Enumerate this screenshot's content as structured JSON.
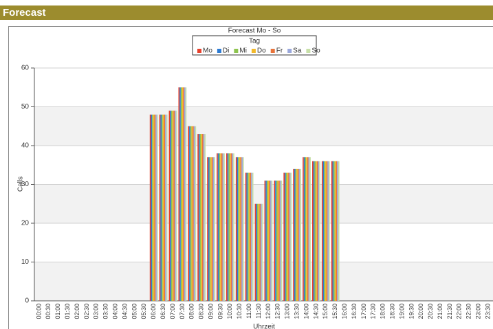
{
  "header": {
    "title": "Forecast"
  },
  "chart_data": {
    "type": "bar",
    "title": "Forecast Mo - So",
    "legend_title": "Tag",
    "x_label": "Uhrzeit",
    "y_label": "Calls",
    "categories": [
      "00:00",
      "00:30",
      "01:00",
      "01:30",
      "02:00",
      "02:30",
      "03:00",
      "03:30",
      "04:00",
      "04:30",
      "05:00",
      "05:30",
      "06:00",
      "06:30",
      "07:00",
      "07:30",
      "08:00",
      "08:30",
      "09:00",
      "09:30",
      "10:00",
      "10:30",
      "11:00",
      "11:30",
      "12:00",
      "12:30",
      "13:00",
      "13:30",
      "14:00",
      "14:30",
      "15:00",
      "15:30",
      "16:00",
      "16:30",
      "17:00",
      "17:30",
      "18:00",
      "18:30",
      "19:00",
      "19:30",
      "20:00",
      "20:30",
      "21:00",
      "21:30",
      "22:00",
      "22:30",
      "23:00",
      "23:30"
    ],
    "series": [
      {
        "name": "Mo",
        "color": "#e8412c",
        "values": [
          0,
          0,
          0,
          0,
          0,
          0,
          0,
          0,
          0,
          0,
          0,
          0,
          48,
          48,
          49,
          55,
          45,
          43,
          37,
          38,
          38,
          37,
          33,
          25,
          31,
          31,
          33,
          34,
          37,
          36,
          36,
          36,
          0,
          0,
          0,
          0,
          0,
          0,
          0,
          0,
          0,
          0,
          0,
          0,
          0,
          0,
          0,
          0
        ]
      },
      {
        "name": "Di",
        "color": "#2c7bd3",
        "values": [
          0,
          0,
          0,
          0,
          0,
          0,
          0,
          0,
          0,
          0,
          0,
          0,
          48,
          48,
          49,
          55,
          45,
          43,
          37,
          38,
          38,
          37,
          33,
          25,
          31,
          31,
          33,
          34,
          37,
          36,
          36,
          36,
          0,
          0,
          0,
          0,
          0,
          0,
          0,
          0,
          0,
          0,
          0,
          0,
          0,
          0,
          0,
          0
        ]
      },
      {
        "name": "Mi",
        "color": "#8dc44e",
        "values": [
          0,
          0,
          0,
          0,
          0,
          0,
          0,
          0,
          0,
          0,
          0,
          0,
          48,
          48,
          49,
          55,
          45,
          43,
          37,
          38,
          38,
          37,
          33,
          25,
          31,
          31,
          33,
          34,
          37,
          36,
          36,
          36,
          0,
          0,
          0,
          0,
          0,
          0,
          0,
          0,
          0,
          0,
          0,
          0,
          0,
          0,
          0,
          0
        ]
      },
      {
        "name": "Do",
        "color": "#f2b92b",
        "values": [
          0,
          0,
          0,
          0,
          0,
          0,
          0,
          0,
          0,
          0,
          0,
          0,
          48,
          48,
          49,
          55,
          45,
          43,
          37,
          38,
          38,
          37,
          33,
          25,
          31,
          31,
          33,
          34,
          37,
          36,
          36,
          36,
          0,
          0,
          0,
          0,
          0,
          0,
          0,
          0,
          0,
          0,
          0,
          0,
          0,
          0,
          0,
          0
        ]
      },
      {
        "name": "Fr",
        "color": "#e8743b",
        "values": [
          0,
          0,
          0,
          0,
          0,
          0,
          0,
          0,
          0,
          0,
          0,
          0,
          48,
          48,
          49,
          55,
          45,
          43,
          37,
          38,
          38,
          37,
          33,
          25,
          31,
          31,
          33,
          34,
          37,
          36,
          36,
          36,
          0,
          0,
          0,
          0,
          0,
          0,
          0,
          0,
          0,
          0,
          0,
          0,
          0,
          0,
          0,
          0
        ]
      },
      {
        "name": "Sa",
        "color": "#9aa8dc",
        "values": [
          0,
          0,
          0,
          0,
          0,
          0,
          0,
          0,
          0,
          0,
          0,
          0,
          48,
          48,
          49,
          55,
          45,
          43,
          37,
          38,
          38,
          37,
          33,
          25,
          31,
          31,
          33,
          34,
          37,
          36,
          36,
          36,
          0,
          0,
          0,
          0,
          0,
          0,
          0,
          0,
          0,
          0,
          0,
          0,
          0,
          0,
          0,
          0
        ]
      },
      {
        "name": "So",
        "color": "#c8e0a8",
        "values": [
          0,
          0,
          0,
          0,
          0,
          0,
          0,
          0,
          0,
          0,
          0,
          0,
          48,
          48,
          49,
          55,
          45,
          43,
          37,
          38,
          38,
          37,
          33,
          25,
          31,
          31,
          33,
          34,
          37,
          36,
          36,
          36,
          0,
          0,
          0,
          0,
          0,
          0,
          0,
          0,
          0,
          0,
          0,
          0,
          0,
          0,
          0,
          0
        ]
      }
    ],
    "ylim": [
      0,
      60
    ],
    "yticks": [
      0,
      10,
      20,
      30,
      40,
      50,
      60
    ],
    "grid": true
  }
}
